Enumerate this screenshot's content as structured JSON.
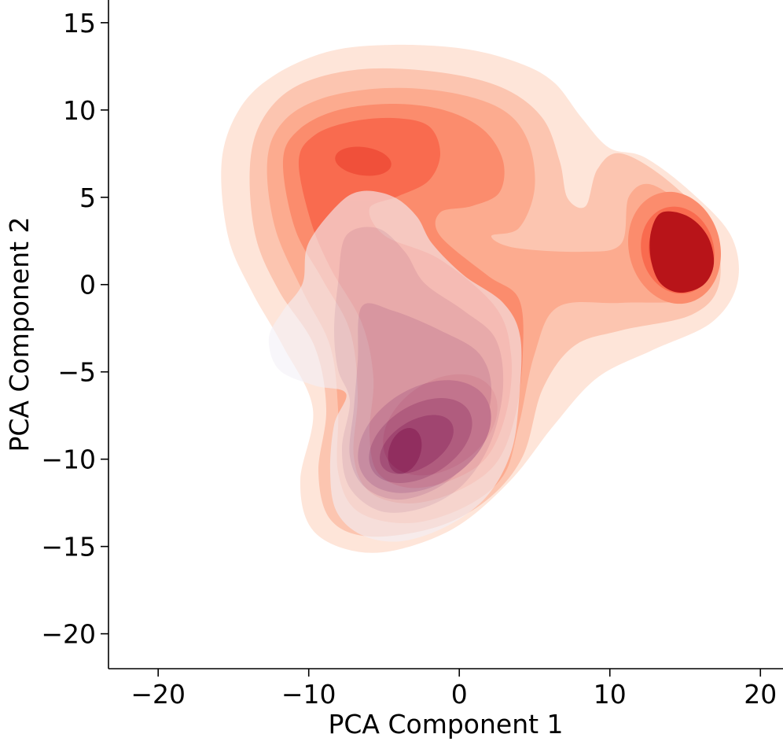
{
  "chart_data": {
    "type": "kde",
    "title": "",
    "xlabel": "PCA Component 1",
    "ylabel": "PCA Component 2",
    "xlim": [
      -23.3,
      21.5
    ],
    "ylim": [
      -22,
      16.3
    ],
    "xticks": [
      -20,
      -10,
      0,
      10,
      20
    ],
    "yticks": [
      -20,
      -15,
      -10,
      -5,
      0,
      5,
      10,
      15
    ],
    "xtick_labels": [
      "−20",
      "−10",
      "0",
      "10",
      "20"
    ],
    "ytick_labels": [
      "−20",
      "−15",
      "−10",
      "−5",
      "0",
      "5",
      "10",
      "15"
    ],
    "grid": false,
    "legend": "none",
    "spines": "left-bottom",
    "series": [
      {
        "colormap": "Reds",
        "colors": [
          "#fee5d9",
          "#fcc5b0",
          "#fcab8f",
          "#fb8c6d",
          "#f96b4f",
          "#f0503a",
          "#b81419"
        ],
        "modes": [
          {
            "center": [
              -6.5,
              7.0
            ],
            "density": "medium"
          },
          {
            "center": [
              14.5,
              1.5
            ],
            "density": "highest"
          },
          {
            "center": [
              -4.0,
              -9.5
            ],
            "density": "medium"
          }
        ]
      },
      {
        "colormap": "Purples",
        "colors": [
          "#f3f0f7",
          "#ddd4e7",
          "#c3b3d6",
          "#a58dc4",
          "#8665ac",
          "#6c3f94",
          "#531978"
        ],
        "alpha": 0.6,
        "modes": [
          {
            "center": [
              -4.0,
              -9.5
            ],
            "density": "highest"
          },
          {
            "center": [
              -6.0,
              -3.0
            ],
            "density": "low"
          }
        ]
      }
    ]
  }
}
